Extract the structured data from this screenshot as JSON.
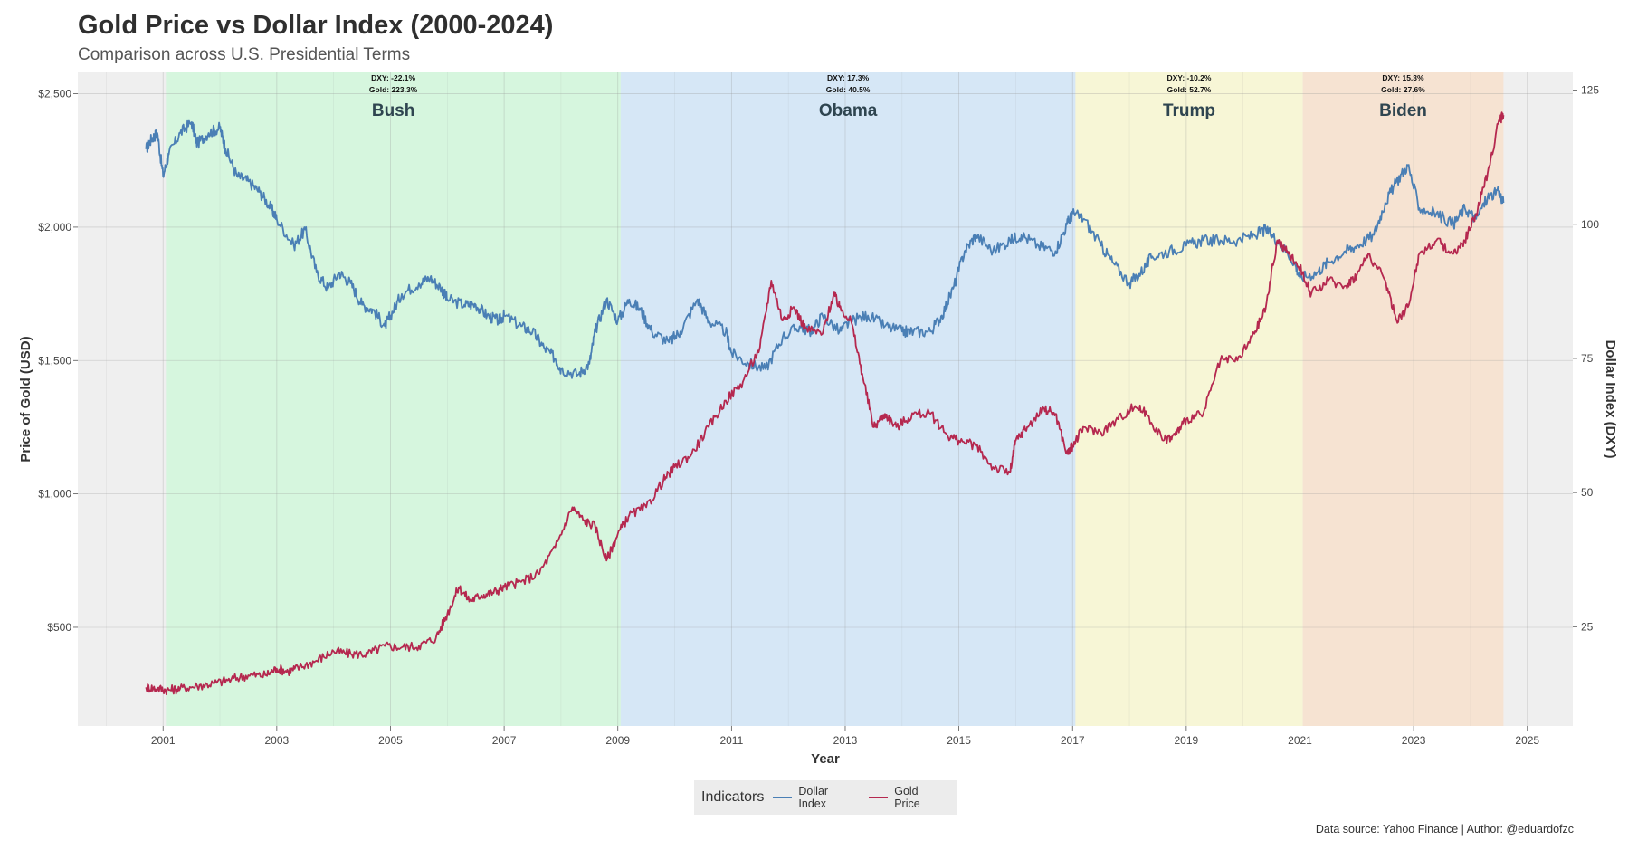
{
  "header": {
    "title": "Gold Price vs Dollar Index (2000-2024)",
    "subtitle": "Comparison across U.S. Presidential Terms"
  },
  "legend": {
    "title": "Indicators",
    "items": [
      {
        "label": "Dollar Index",
        "color": "#4a7fb5"
      },
      {
        "label": "Gold Price",
        "color": "#b5284f"
      }
    ]
  },
  "caption": "Data source: Yahoo Finance | Author: @eduardofzc",
  "chart_data": {
    "type": "line",
    "title": "Gold Price vs Dollar Index (2000-2024)",
    "subtitle": "Comparison across U.S. Presidential Terms",
    "xlabel": "Year",
    "ylabel": "Price of Gold (USD)",
    "y2label": "Dollar Index (DXY)",
    "xlim": [
      1999.5,
      2025.8
    ],
    "ylim": [
      130,
      2580
    ],
    "y2lim": [
      6.5,
      128.3
    ],
    "x_ticks": [
      2001,
      2003,
      2005,
      2007,
      2009,
      2011,
      2013,
      2015,
      2017,
      2019,
      2021,
      2023,
      2025
    ],
    "x_tick_labels": [
      "2001",
      "2003",
      "2005",
      "2007",
      "2009",
      "2011",
      "2013",
      "2015",
      "2017",
      "2019",
      "2021",
      "2023",
      "2025"
    ],
    "y_ticks": [
      500,
      1000,
      1500,
      2000,
      2500
    ],
    "y_tick_labels": [
      "$500",
      "$1,000",
      "$1,500",
      "$2,000",
      "$2,500"
    ],
    "y2_ticks": [
      25,
      50,
      75,
      100,
      125
    ],
    "y2_tick_labels": [
      "25",
      "50",
      "75",
      "100",
      "125"
    ],
    "grid": true,
    "legend_position": "bottom",
    "terms": [
      {
        "name": "Bush",
        "start": 2001.05,
        "end": 2009.05,
        "color": "#d4f5dc",
        "dxy_label": "DXY: -22.1%",
        "gold_label": "Gold: 223.3%"
      },
      {
        "name": "Obama",
        "start": 2009.05,
        "end": 2017.05,
        "color": "#d4e6f5",
        "dxy_label": "DXY: 17.3%",
        "gold_label": "Gold: 40.5%"
      },
      {
        "name": "Trump",
        "start": 2017.05,
        "end": 2021.05,
        "color": "#f7f6d4",
        "dxy_label": "DXY: -10.2%",
        "gold_label": "Gold: 52.7%"
      },
      {
        "name": "Biden",
        "start": 2021.05,
        "end": 2024.58,
        "color": "#f6e2d0",
        "dxy_label": "DXY: 15.3%",
        "gold_label": "Gold: 27.6%"
      }
    ],
    "series": [
      {
        "name": "Dollar Index",
        "axis": "right",
        "color": "#4a7fb5",
        "x": [
          2000.7,
          2000.8,
          2000.9,
          2001.0,
          2001.1,
          2001.3,
          2001.5,
          2001.6,
          2001.8,
          2002.0,
          2002.1,
          2002.3,
          2002.5,
          2002.7,
          2002.9,
          2003.0,
          2003.3,
          2003.5,
          2003.7,
          2003.9,
          2004.1,
          2004.3,
          2004.5,
          2004.7,
          2004.9,
          2005.0,
          2005.2,
          2005.5,
          2005.7,
          2005.9,
          2006.0,
          2006.3,
          2006.5,
          2006.7,
          2006.9,
          2007.0,
          2007.3,
          2007.5,
          2007.7,
          2007.9,
          2008.0,
          2008.3,
          2008.5,
          2008.6,
          2008.8,
          2009.0,
          2009.2,
          2009.4,
          2009.6,
          2009.9,
          2010.1,
          2010.4,
          2010.6,
          2010.9,
          2011.0,
          2011.3,
          2011.6,
          2011.9,
          2012.2,
          2012.4,
          2012.6,
          2012.9,
          2013.1,
          2013.4,
          2013.7,
          2014.0,
          2014.2,
          2014.5,
          2014.7,
          2014.9,
          2015.1,
          2015.3,
          2015.6,
          2015.9,
          2016.1,
          2016.4,
          2016.7,
          2016.9,
          2017.0,
          2017.2,
          2017.5,
          2017.7,
          2018.0,
          2018.2,
          2018.4,
          2018.7,
          2019.0,
          2019.3,
          2019.6,
          2019.9,
          2020.2,
          2020.4,
          2020.6,
          2020.9,
          2021.0,
          2021.3,
          2021.5,
          2021.8,
          2022.0,
          2022.3,
          2022.5,
          2022.7,
          2022.9,
          2023.1,
          2023.4,
          2023.7,
          2023.9,
          2024.1,
          2024.3,
          2024.5,
          2024.58
        ],
        "values": [
          114,
          116,
          117,
          109,
          113,
          117,
          119,
          115,
          117,
          118,
          114,
          109,
          108,
          106,
          103,
          101,
          96,
          99,
          91,
          88,
          91,
          89,
          85,
          84,
          81,
          83,
          87,
          89,
          90,
          88,
          86,
          85,
          85,
          83,
          82,
          83,
          81,
          80,
          77,
          75,
          73,
          72,
          74,
          80,
          86,
          82,
          86,
          84,
          80,
          78,
          80,
          86,
          82,
          80,
          76,
          74,
          73,
          79,
          81,
          80,
          83,
          80,
          82,
          83,
          81,
          80,
          80,
          80,
          83,
          88,
          95,
          98,
          95,
          97,
          98,
          96,
          95,
          100,
          102,
          101,
          96,
          93,
          89,
          91,
          94,
          95,
          96,
          97,
          97,
          97,
          98,
          99,
          97,
          93,
          90,
          91,
          93,
          95,
          96,
          98,
          104,
          108,
          111,
          103,
          102,
          100,
          103,
          101,
          105,
          106,
          104
        ]
      },
      {
        "name": "Gold Price",
        "axis": "left",
        "color": "#b5284f",
        "x": [
          2000.7,
          2000.9,
          2001.1,
          2001.3,
          2001.6,
          2001.9,
          2002.2,
          2002.5,
          2002.8,
          2003.0,
          2003.2,
          2003.4,
          2003.7,
          2004.0,
          2004.3,
          2004.6,
          2004.9,
          2005.2,
          2005.5,
          2005.8,
          2006.0,
          2006.2,
          2006.4,
          2006.6,
          2006.8,
          2007.0,
          2007.3,
          2007.6,
          2007.9,
          2008.2,
          2008.4,
          2008.6,
          2008.8,
          2009.0,
          2009.2,
          2009.5,
          2009.8,
          2010.0,
          2010.3,
          2010.6,
          2010.9,
          2011.2,
          2011.5,
          2011.7,
          2011.9,
          2012.1,
          2012.3,
          2012.6,
          2012.8,
          2012.9,
          2013.1,
          2013.3,
          2013.5,
          2013.7,
          2013.9,
          2014.2,
          2014.5,
          2014.8,
          2015.0,
          2015.3,
          2015.6,
          2015.9,
          2016.0,
          2016.2,
          2016.5,
          2016.7,
          2016.9,
          2017.0,
          2017.2,
          2017.5,
          2017.8,
          2018.1,
          2018.3,
          2018.6,
          2018.8,
          2019.0,
          2019.3,
          2019.6,
          2019.9,
          2020.2,
          2020.4,
          2020.6,
          2020.8,
          2021.0,
          2021.2,
          2021.5,
          2021.8,
          2022.0,
          2022.2,
          2022.5,
          2022.7,
          2022.9,
          2023.1,
          2023.4,
          2023.7,
          2023.9,
          2024.1,
          2024.3,
          2024.5,
          2024.58
        ],
        "values": [
          275,
          270,
          265,
          270,
          280,
          290,
          305,
          320,
          320,
          345,
          335,
          350,
          375,
          410,
          400,
          400,
          430,
          425,
          430,
          460,
          550,
          650,
          600,
          620,
          630,
          650,
          670,
          700,
          800,
          950,
          900,
          880,
          750,
          850,
          920,
          950,
          1050,
          1100,
          1150,
          1250,
          1350,
          1420,
          1550,
          1800,
          1650,
          1700,
          1620,
          1600,
          1750,
          1700,
          1650,
          1450,
          1250,
          1300,
          1250,
          1300,
          1300,
          1220,
          1200,
          1180,
          1100,
          1080,
          1200,
          1250,
          1320,
          1300,
          1150,
          1180,
          1250,
          1230,
          1280,
          1330,
          1300,
          1200,
          1220,
          1280,
          1300,
          1500,
          1500,
          1600,
          1700,
          1950,
          1900,
          1850,
          1750,
          1800,
          1780,
          1820,
          1900,
          1800,
          1650,
          1700,
          1900,
          1950,
          1900,
          1950,
          2050,
          2200,
          2400,
          2420
        ]
      }
    ]
  }
}
